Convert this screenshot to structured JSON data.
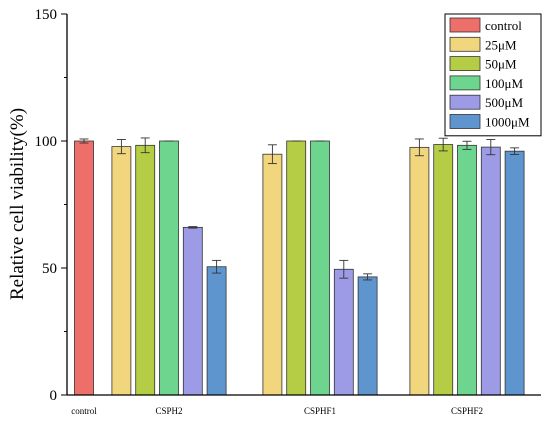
{
  "chart_data": {
    "type": "bar",
    "ylabel": "Relative cell viability(%)",
    "xlabel": "",
    "ylim": [
      0,
      150
    ],
    "yticks": [
      0,
      50,
      100,
      150
    ],
    "grid": false,
    "legend_position": "top-right",
    "groups": [
      {
        "label": "control",
        "bars": [
          {
            "series": "control",
            "value": 100,
            "error": 0.8
          }
        ]
      },
      {
        "label": "CSPH2",
        "bars": [
          {
            "series": "25μM",
            "value": 97.8,
            "error": 2.8
          },
          {
            "series": "50μM",
            "value": 98.3,
            "error": 2.9
          },
          {
            "series": "100μM",
            "value": 100,
            "error": 0
          },
          {
            "series": "500μM",
            "value": 66,
            "error": 0.3
          },
          {
            "series": "1000μM",
            "value": 50.5,
            "error": 2.5
          }
        ]
      },
      {
        "label": "CSPHF1",
        "bars": [
          {
            "series": "25μM",
            "value": 94.8,
            "error": 3.7
          },
          {
            "series": "50μM",
            "value": 100,
            "error": 0
          },
          {
            "series": "100μM",
            "value": 100,
            "error": 0
          },
          {
            "series": "500μM",
            "value": 49.5,
            "error": 3.5
          },
          {
            "series": "1000μM",
            "value": 46.5,
            "error": 1.2
          }
        ]
      },
      {
        "label": "CSPHF2",
        "bars": [
          {
            "series": "25μM",
            "value": 97.5,
            "error": 3.3
          },
          {
            "series": "50μM",
            "value": 98.6,
            "error": 2.5
          },
          {
            "series": "100μM",
            "value": 98.3,
            "error": 1.6
          },
          {
            "series": "500μM",
            "value": 97.6,
            "error": 3.0
          },
          {
            "series": "1000μM",
            "value": 96.0,
            "error": 1.3
          }
        ]
      }
    ],
    "series": [
      {
        "name": "control",
        "color": "#ee6e6a"
      },
      {
        "name": "25μM",
        "color": "#f2d67e"
      },
      {
        "name": "50μM",
        "color": "#b5cc45"
      },
      {
        "name": "100μM",
        "color": "#6ed58f"
      },
      {
        "name": "500μM",
        "color": "#9d9be6"
      },
      {
        "name": "1000μM",
        "color": "#5f95cf"
      }
    ]
  }
}
